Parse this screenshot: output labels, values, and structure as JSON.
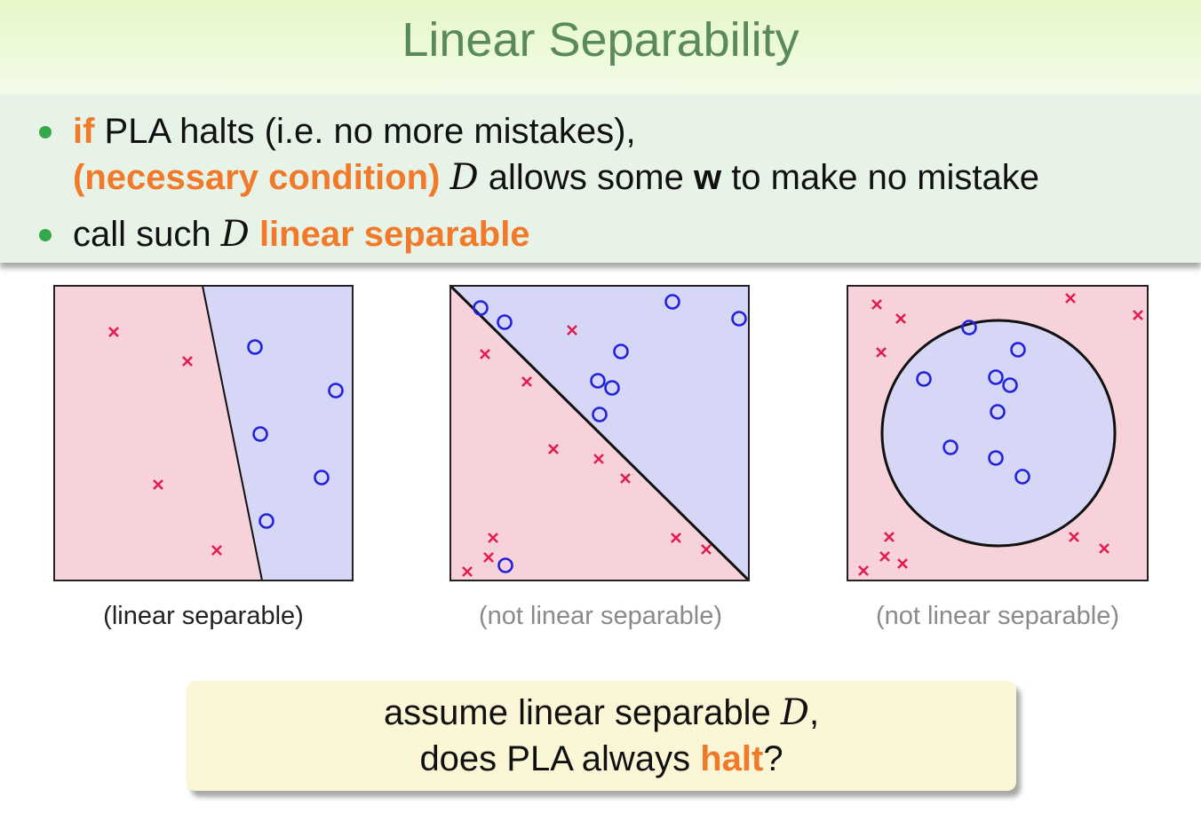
{
  "title": "Linear Separability",
  "bullets": [
    {
      "line1_prefix": "if",
      "line1_rest": " PLA halts (i.e. no more mistakes),",
      "line2_prefix": "(necessary condition)",
      "line2_symbol": "D",
      "line2_mid": " allows some ",
      "line2_bold": "w",
      "line2_rest": " to make no mistake"
    },
    {
      "text_prefix": "call such ",
      "symbol": "D",
      "highlight": " linear separable"
    }
  ],
  "panels": [
    {
      "caption": "(linear separable)"
    },
    {
      "caption": "(not linear separable)"
    },
    {
      "caption": "(not linear separable)"
    }
  ],
  "question": {
    "line1_prefix": "assume linear separable ",
    "line1_symbol": "D",
    "line1_suffix": ",",
    "line2_prefix": "does PLA always ",
    "line2_highlight": "halt",
    "line2_suffix": "?"
  },
  "colors": {
    "pink_region": "#f8d2db",
    "blue_region": "#d6d6f6",
    "cross": "#e01e50",
    "circle": "#2222dd",
    "accent_orange": "#f07a2a",
    "bullet_green": "#35a84a"
  }
}
